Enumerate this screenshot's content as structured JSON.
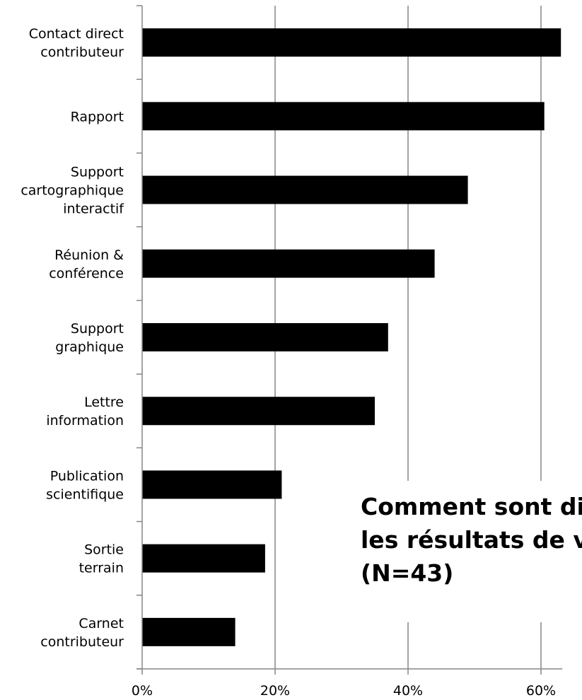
{
  "chart_data": {
    "type": "bar",
    "orientation": "horizontal",
    "title_lines": [
      "Comment sont dif",
      "les résultats de vo",
      "(N=43)"
    ],
    "categories": [
      [
        "Contact direct",
        "contributeur"
      ],
      [
        "Rapport"
      ],
      [
        "Support",
        "cartographique",
        "interactif"
      ],
      [
        "Réunion &",
        "conférence"
      ],
      [
        "Support",
        "graphique"
      ],
      [
        "Lettre",
        "information"
      ],
      [
        "Publication",
        "scientifique"
      ],
      [
        "Sortie",
        "terrain"
      ],
      [
        "Carnet",
        "contributeur"
      ]
    ],
    "values": [
      63,
      60.5,
      49,
      44,
      37,
      35,
      21,
      18.5,
      14
    ],
    "xlim": [
      0,
      63
    ],
    "x_ticks": [
      0,
      20,
      40,
      60
    ],
    "x_tick_labels": [
      "0%",
      "20%",
      "40%",
      "60%"
    ],
    "gridlines": true,
    "bar_color": "#000000",
    "grid_color": "#868686",
    "axis_color": "#868686"
  }
}
